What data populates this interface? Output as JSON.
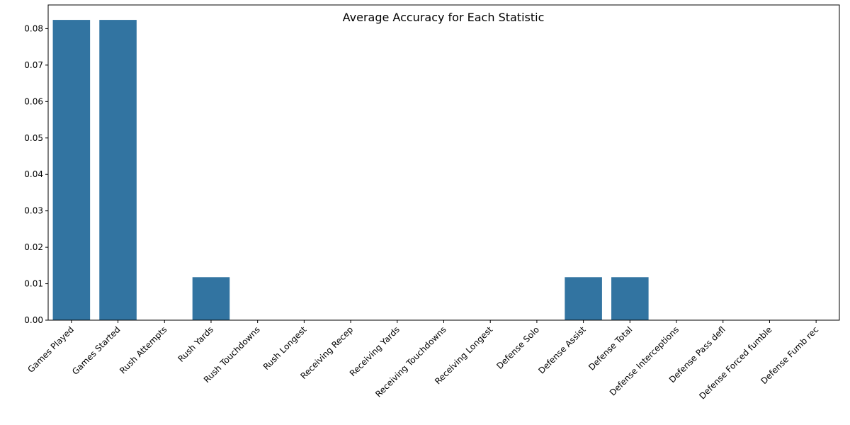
{
  "chart_data": {
    "type": "bar",
    "title": "Average Accuracy for Each Statistic",
    "xlabel": "",
    "ylabel": "",
    "categories": [
      "Games Played",
      "Games Started",
      "Rush Attempts",
      "Rush Yards",
      "Rush Touchdowns",
      "Rush Longest",
      "Receiving Recep",
      "Receiving Yards",
      "Receiving Touchdowns",
      "Receiving Longest",
      "Defense Solo",
      "Defense Assist",
      "Defense Total",
      "Defense Interceptions",
      "Defense Pass defl",
      "Defense Forced fumble",
      "Defense Fumb rec"
    ],
    "values": [
      0.0824,
      0.0824,
      0,
      0.0118,
      0,
      0,
      0,
      0,
      0,
      0,
      0,
      0.0118,
      0.0118,
      0,
      0,
      0,
      0
    ],
    "ylim": [
      0,
      0.0865
    ],
    "yticks": [
      0.0,
      0.01,
      0.02,
      0.03,
      0.04,
      0.05,
      0.06,
      0.07,
      0.08
    ],
    "ytick_labels": [
      "0.00",
      "0.01",
      "0.02",
      "0.03",
      "0.04",
      "0.05",
      "0.06",
      "0.07",
      "0.08"
    ],
    "bar_color": "#3274a1",
    "grid": false,
    "legend": "none"
  }
}
